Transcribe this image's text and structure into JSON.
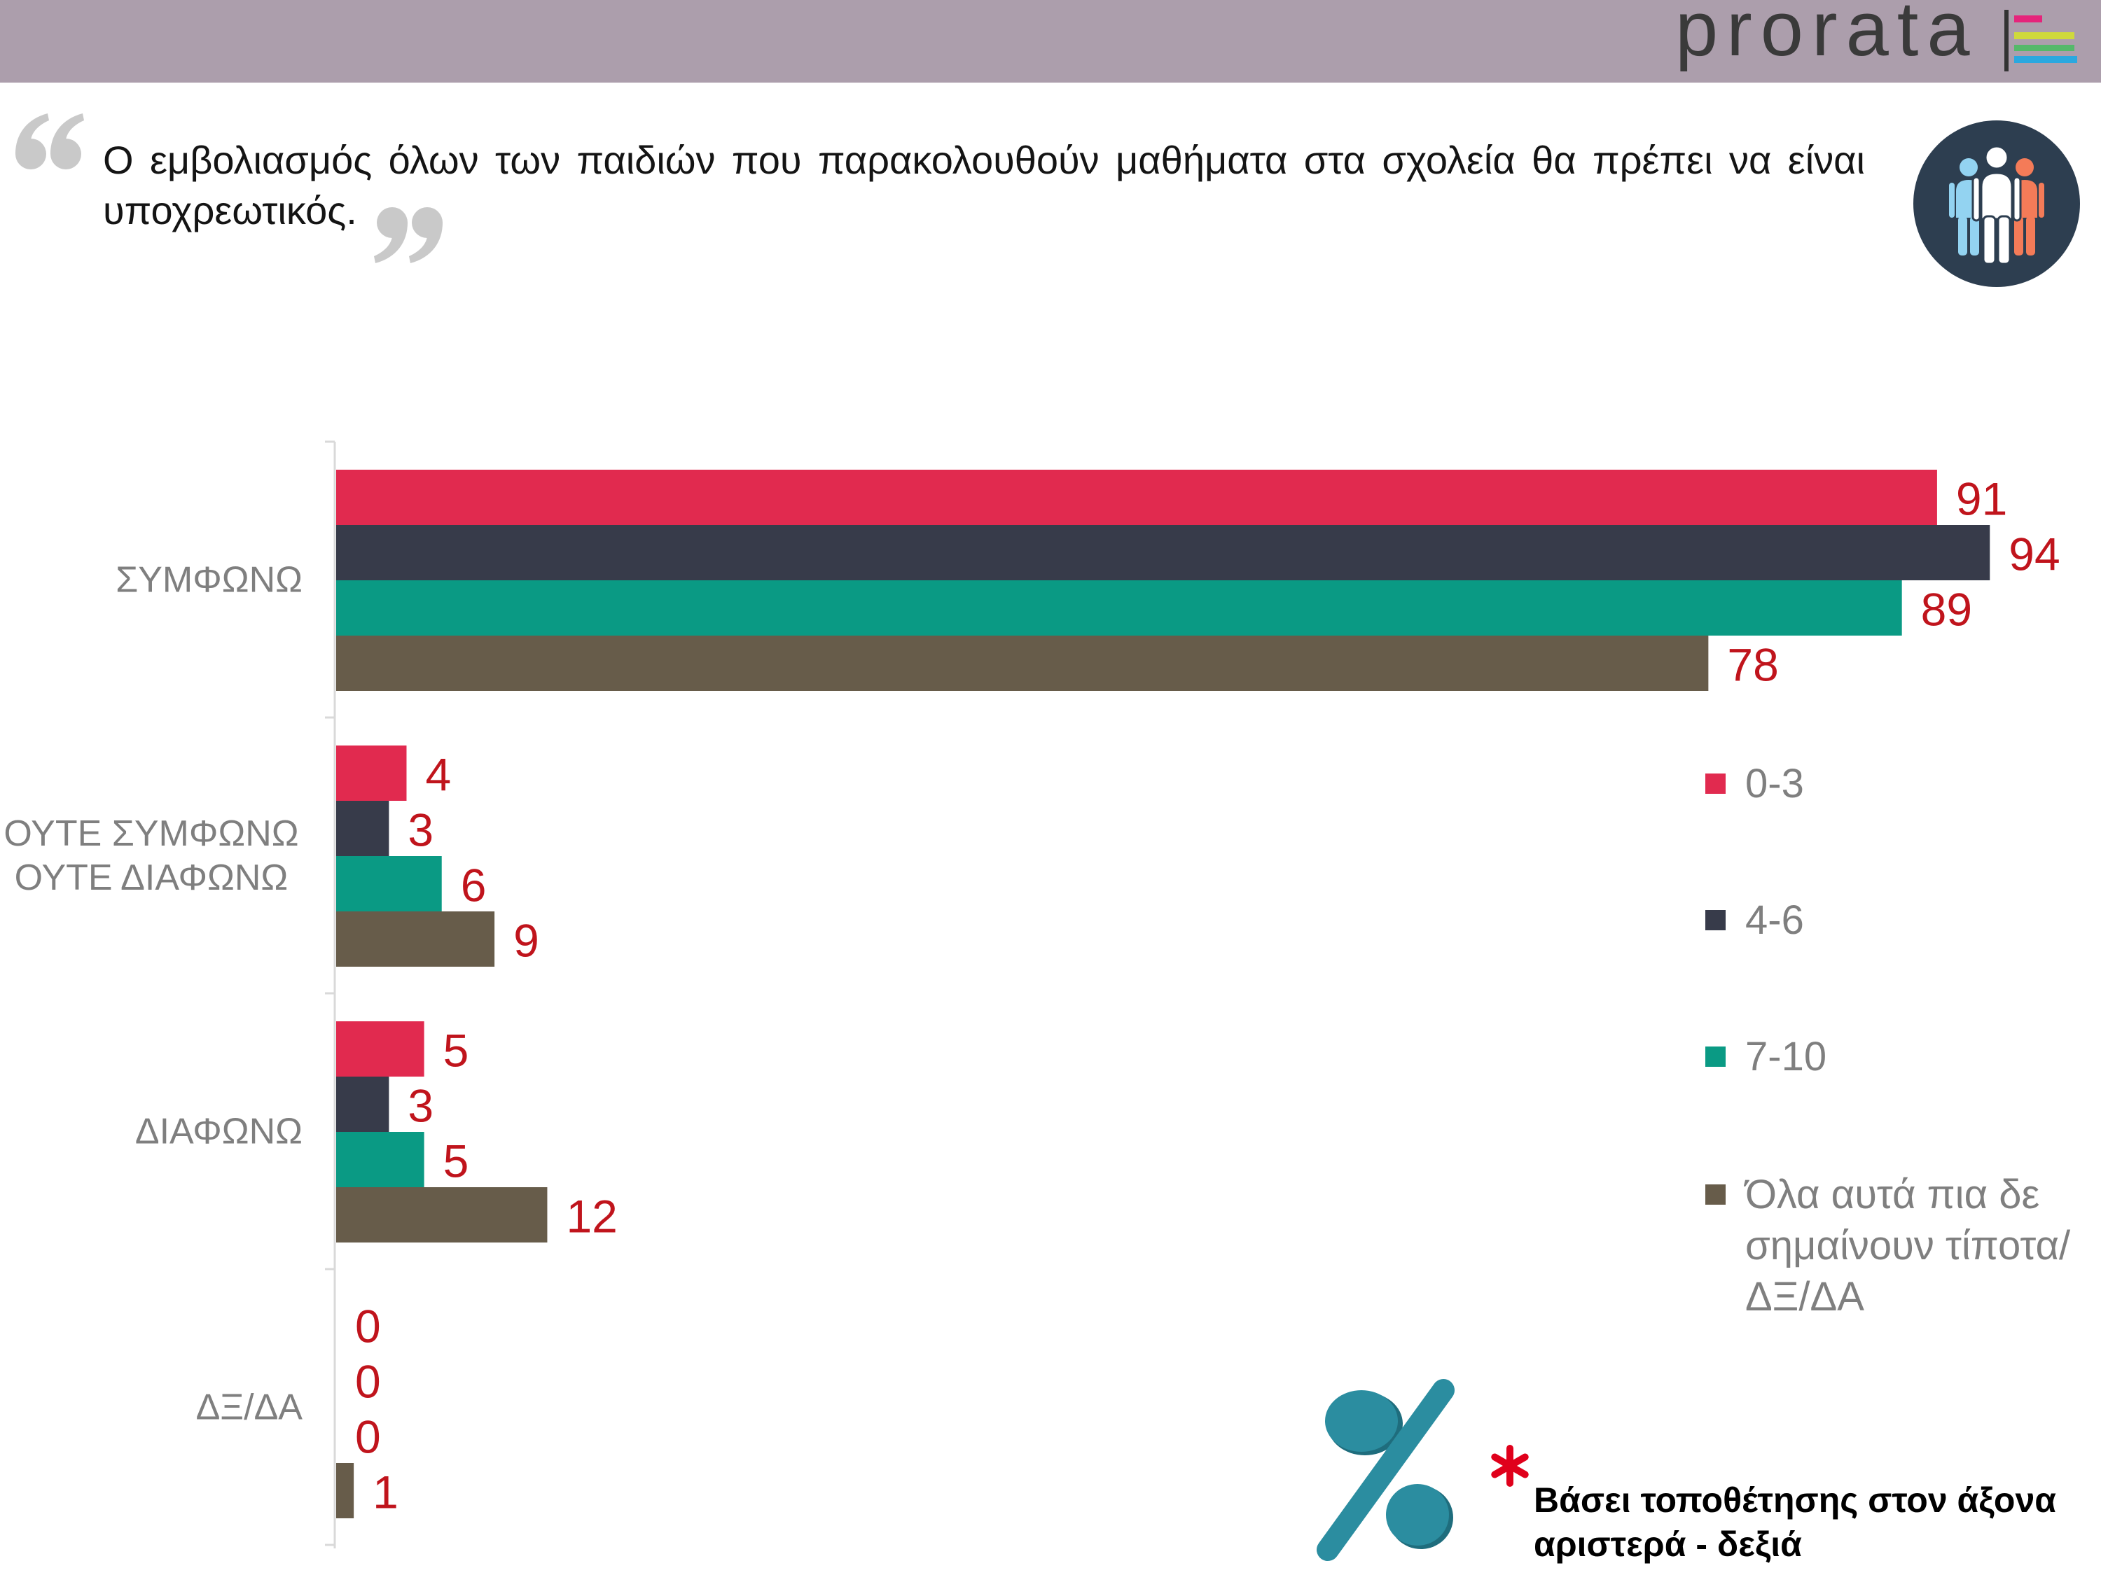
{
  "header": {
    "logo_text": "prorata",
    "background_color": "#ac9eac"
  },
  "question": {
    "text": "Ο εμβολιασμός όλων των παιδιών που παρακολουθούν μαθήματα στα σχολεία θα πρέπει να είναι υποχρεωτικός."
  },
  "icons": {
    "quote_open": "open-quote-icon",
    "quote_close": "close-quote-icon",
    "people": "people-group-icon",
    "percent": "percent-icon",
    "footnote_marker": "asterisk-icon",
    "logo_mark": "logo-stripes-icon"
  },
  "chart_data": {
    "type": "bar",
    "orientation": "horizontal",
    "categories": [
      "ΣΥΜΦΩΝΩ",
      "ΟΥΤΕ ΣΥΜΦΩΝΩ ΟΥΤΕ ΔΙΑΦΩΝΩ",
      "ΔΙΑΦΩΝΩ",
      "ΔΞ/ΔΑ"
    ],
    "series": [
      {
        "name": "0-3",
        "color": "#e12a4f",
        "values": [
          91,
          4,
          5,
          0
        ]
      },
      {
        "name": "4-6",
        "color": "#373b4a",
        "values": [
          94,
          3,
          3,
          0
        ]
      },
      {
        "name": "7-10",
        "color": "#0a9a84",
        "values": [
          89,
          6,
          5,
          0
        ]
      },
      {
        "name": "Όλα αυτά πια δε σημαίνουν τίποτα/ΔΞ/ΔΑ",
        "color": "#675c4a",
        "values": [
          78,
          9,
          12,
          1
        ]
      }
    ],
    "data_labels": true,
    "data_label_color": "#c0141c",
    "grid": false,
    "legend_position": "right",
    "title": "",
    "xlabel": "",
    "ylabel": ""
  },
  "footnote": {
    "text": "Βάσει τοποθέτησης στον άξονα αριστερά - δεξιά",
    "marker_color": "#e0001b",
    "percent_color": "#2b8da0"
  }
}
